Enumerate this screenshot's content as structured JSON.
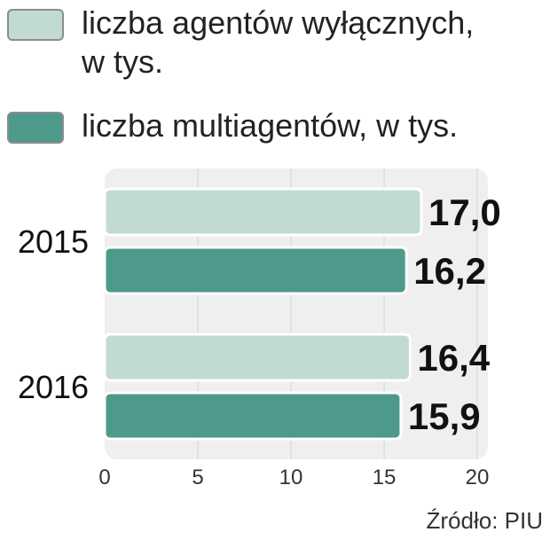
{
  "colors": {
    "series_light": "#c1dbd3",
    "series_dark": "#4d9a8c",
    "plot_bg": "#efefef"
  },
  "legend": [
    {
      "label": "liczba agentów wyłącznych, w tys.",
      "color": "#c1dbd3"
    },
    {
      "label": "liczba multiagentów, w tys.",
      "color": "#4d9a8c"
    }
  ],
  "source": "Źródło: PIU",
  "chart_data": {
    "type": "bar",
    "orientation": "horizontal",
    "categories": [
      "2015",
      "2016"
    ],
    "series": [
      {
        "name": "liczba agentów wyłącznych, w tys.",
        "values": [
          17.0,
          16.4
        ],
        "labels": [
          "17,0",
          "16,4"
        ]
      },
      {
        "name": "liczba multiagentów, w tys.",
        "values": [
          16.2,
          15.9
        ],
        "labels": [
          "16,2",
          "15,9"
        ]
      }
    ],
    "xticks": [
      "0",
      "5",
      "10",
      "15",
      "20"
    ],
    "xlim": [
      0,
      20
    ],
    "grid": true,
    "legend_position": "top"
  }
}
